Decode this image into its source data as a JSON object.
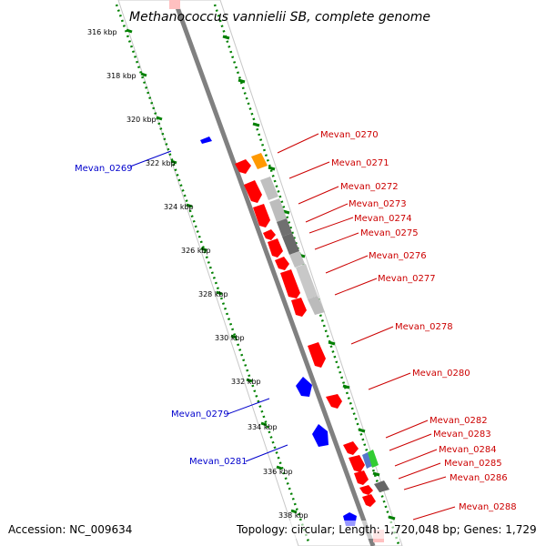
{
  "title": "Methanococcus vannielii SB, complete genome",
  "accession_text": "Accession: NC_009634",
  "summary_text": "Topology: circular; Length: 1,720,048 bp; Genes: 1,729",
  "colors": {
    "forward": "#ff0000",
    "reverse": "#0000ff",
    "ruler": "#008000",
    "backbone": "#808080"
  },
  "ticks": [
    "316 kbp",
    "318 kbp",
    "320 kbp",
    "322 kbp",
    "324 kbp",
    "326 kbp",
    "328 kbp",
    "330 kbp",
    "332 kbp",
    "334 kbp",
    "336 kbp",
    "338 kbp"
  ],
  "genes": [
    {
      "name": "Mevan_0269",
      "strand": "reverse"
    },
    {
      "name": "Mevan_0270",
      "strand": "forward"
    },
    {
      "name": "Mevan_0271",
      "strand": "forward"
    },
    {
      "name": "Mevan_0272",
      "strand": "forward"
    },
    {
      "name": "Mevan_0273",
      "strand": "forward"
    },
    {
      "name": "Mevan_0274",
      "strand": "forward"
    },
    {
      "name": "Mevan_0275",
      "strand": "forward"
    },
    {
      "name": "Mevan_0276",
      "strand": "forward"
    },
    {
      "name": "Mevan_0277",
      "strand": "forward"
    },
    {
      "name": "Mevan_0278",
      "strand": "forward"
    },
    {
      "name": "Mevan_0279",
      "strand": "reverse"
    },
    {
      "name": "Mevan_0280",
      "strand": "forward"
    },
    {
      "name": "Mevan_0281",
      "strand": "reverse"
    },
    {
      "name": "Mevan_0282",
      "strand": "forward"
    },
    {
      "name": "Mevan_0283",
      "strand": "forward"
    },
    {
      "name": "Mevan_0284",
      "strand": "forward"
    },
    {
      "name": "Mevan_0285",
      "strand": "forward"
    },
    {
      "name": "Mevan_0286",
      "strand": "forward"
    },
    {
      "name": "Mevan_0288",
      "strand": "forward"
    }
  ]
}
